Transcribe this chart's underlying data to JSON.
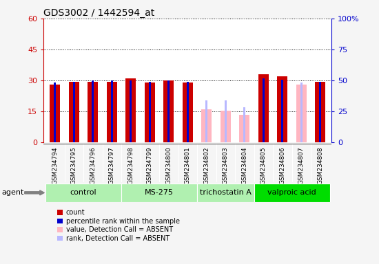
{
  "title": "GDS3002 / 1442594_at",
  "samples": [
    "GSM234794",
    "GSM234795",
    "GSM234796",
    "GSM234797",
    "GSM234798",
    "GSM234799",
    "GSM234800",
    "GSM234801",
    "GSM234802",
    "GSM234803",
    "GSM234804",
    "GSM234805",
    "GSM234806",
    "GSM234807",
    "GSM234808"
  ],
  "count_values": [
    28,
    29.5,
    29.5,
    29.5,
    31,
    29,
    30,
    29,
    null,
    null,
    null,
    33,
    32,
    null,
    29.5
  ],
  "rank_values": [
    29,
    29.5,
    30,
    30,
    30,
    29.5,
    30,
    29.5,
    null,
    null,
    null,
    31,
    30.5,
    29,
    29.5
  ],
  "absent_count": [
    null,
    null,
    null,
    null,
    null,
    null,
    null,
    null,
    16,
    15.5,
    13.5,
    null,
    null,
    28,
    null
  ],
  "absent_rank": [
    null,
    null,
    null,
    null,
    null,
    null,
    null,
    null,
    20.5,
    20.5,
    17,
    null,
    null,
    29,
    null
  ],
  "agents": [
    {
      "label": "control",
      "start": 0,
      "end": 4,
      "color": "#b0f0b0"
    },
    {
      "label": "MS-275",
      "start": 4,
      "end": 8,
      "color": "#b0f0b0"
    },
    {
      "label": "trichostatin A",
      "start": 8,
      "end": 11,
      "color": "#b0f0b0"
    },
    {
      "label": "valproic acid",
      "start": 11,
      "end": 15,
      "color": "#00dd00"
    }
  ],
  "ylim_left": [
    0,
    60
  ],
  "ylim_right": [
    0,
    100
  ],
  "yticks_left": [
    0,
    15,
    30,
    45,
    60
  ],
  "ytick_labels_left": [
    "0",
    "15",
    "30",
    "45",
    "60"
  ],
  "yticks_right": [
    0,
    25,
    50,
    75,
    100
  ],
  "ytick_labels_right": [
    "0",
    "25",
    "50",
    "75",
    "100%"
  ],
  "count_bar_width": 0.55,
  "rank_bar_width": 0.12,
  "count_color": "#cc0000",
  "rank_color": "#0000cc",
  "absent_count_color": "#ffb6c1",
  "absent_rank_color": "#b8b8ff",
  "xtick_bg": "#c8c8c8",
  "plot_bg": "#ffffff",
  "grid_color": "#000000",
  "fig_bg": "#f5f5f5"
}
